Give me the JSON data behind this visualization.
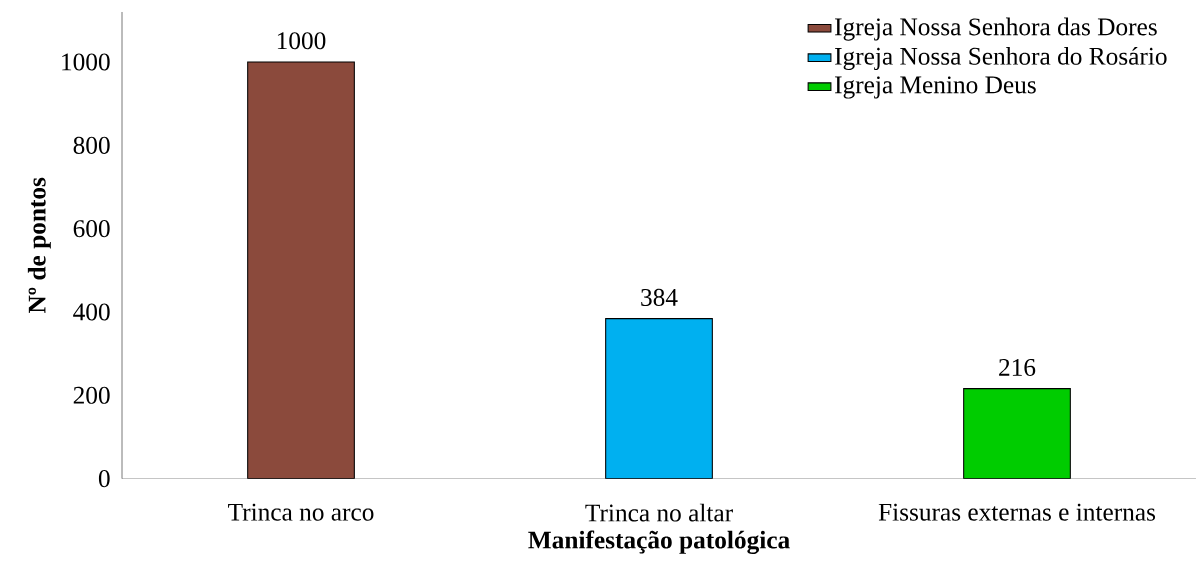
{
  "chart_data": {
    "type": "bar",
    "xlabel": "Manifestação patológica",
    "ylabel": "Nº de pontos",
    "categories": [
      "Trinca no arco",
      "Trinca no altar",
      "Fissuras externas e internas"
    ],
    "series": [
      {
        "name": "Igreja Nossa Senhora das Dores",
        "color": "#8b4a3c",
        "values": [
          1000,
          null,
          null
        ]
      },
      {
        "name": "Igreja Nossa Senhora do Rosário",
        "color": "#00b0f0",
        "values": [
          null,
          384,
          null
        ]
      },
      {
        "name": "Igreja Menino Deus",
        "color": "#00cc00",
        "values": [
          null,
          null,
          216
        ]
      }
    ],
    "ylim": [
      0,
      1120
    ],
    "yticks": [
      0,
      200,
      400,
      600,
      800,
      1000
    ],
    "data_labels": true,
    "legend": "top right",
    "grid": false
  }
}
